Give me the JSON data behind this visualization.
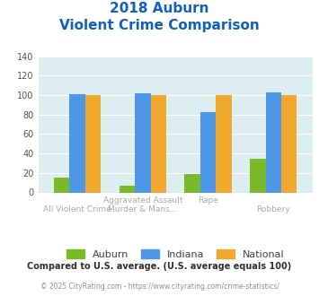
{
  "title_line1": "2018 Auburn",
  "title_line2": "Violent Crime Comparison",
  "xlabel_top": [
    "",
    "Aggravated Assault",
    "Rape",
    ""
  ],
  "xlabel_bottom": [
    "All Violent Crime",
    "Murder & Mans...",
    "",
    "Robbery"
  ],
  "auburn": [
    15,
    7,
    19,
    35
  ],
  "indiana": [
    101,
    102,
    83,
    103
  ],
  "national": [
    100,
    100,
    100,
    100
  ],
  "auburn_color": "#7aba2a",
  "indiana_color": "#4d96e8",
  "national_color": "#f0a830",
  "ylim": [
    0,
    140
  ],
  "yticks": [
    0,
    20,
    40,
    60,
    80,
    100,
    120,
    140
  ],
  "bg_color": "#ddeef0",
  "title_color": "#1060c0",
  "label_color": "#aaaaaa",
  "footnote1": "Compared to U.S. average. (U.S. average equals 100)",
  "footnote2": "© 2025 CityRating.com - https://www.cityrating.com/crime-statistics/",
  "footnote1_color": "#303030",
  "footnote2_color": "#909090",
  "legend_labels": [
    "Auburn",
    "Indiana",
    "National"
  ]
}
